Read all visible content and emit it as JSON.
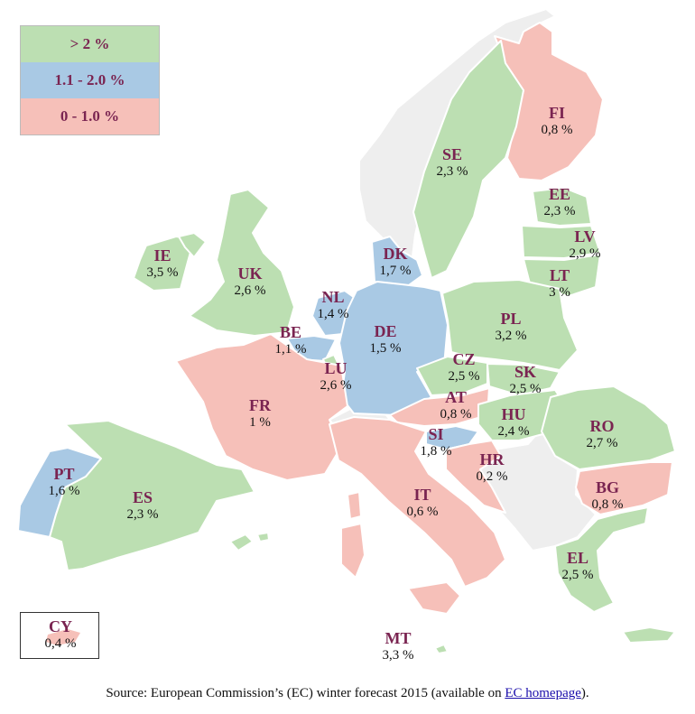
{
  "colors": {
    "high": "#bcdfb2",
    "mid": "#a9c9e4",
    "low": "#f6c0b9",
    "none": "#eeeeee",
    "border": "#ffffff",
    "label": "#7a2451"
  },
  "legend": [
    {
      "label": "> 2 %",
      "color": "#bcdfb2"
    },
    {
      "label": "1.1 - 2.0 %",
      "color": "#a9c9e4"
    },
    {
      "label": "0 - 1.0 %",
      "color": "#f6c0b9"
    }
  ],
  "countries": [
    {
      "code": "FI",
      "value": "0,8 %",
      "category": "low"
    },
    {
      "code": "SE",
      "value": "2,3 %",
      "category": "high"
    },
    {
      "code": "EE",
      "value": "2,3 %",
      "category": "high"
    },
    {
      "code": "LV",
      "value": "2,9 %",
      "category": "high"
    },
    {
      "code": "LT",
      "value": "3 %",
      "category": "high"
    },
    {
      "code": "IE",
      "value": "3,5 %",
      "category": "high"
    },
    {
      "code": "UK",
      "value": "2,6 %",
      "category": "high"
    },
    {
      "code": "DK",
      "value": "1,7 %",
      "category": "mid"
    },
    {
      "code": "NL",
      "value": "1,4 %",
      "category": "mid"
    },
    {
      "code": "PL",
      "value": "3,2 %",
      "category": "high"
    },
    {
      "code": "BE",
      "value": "1,1 %",
      "category": "mid"
    },
    {
      "code": "DE",
      "value": "1,5 %",
      "category": "mid"
    },
    {
      "code": "LU",
      "value": "2,6 %",
      "category": "high"
    },
    {
      "code": "CZ",
      "value": "2,5 %",
      "category": "high"
    },
    {
      "code": "SK",
      "value": "2,5 %",
      "category": "high"
    },
    {
      "code": "AT",
      "value": "0,8 %",
      "category": "low"
    },
    {
      "code": "FR",
      "value": "1 %",
      "category": "low"
    },
    {
      "code": "HU",
      "value": "2,4 %",
      "category": "high"
    },
    {
      "code": "RO",
      "value": "2,7 %",
      "category": "high"
    },
    {
      "code": "SI",
      "value": "1,8 %",
      "category": "mid"
    },
    {
      "code": "HR",
      "value": "0,2 %",
      "category": "low"
    },
    {
      "code": "PT",
      "value": "1,6 %",
      "category": "mid"
    },
    {
      "code": "ES",
      "value": "2,3 %",
      "category": "high"
    },
    {
      "code": "IT",
      "value": "0,6 %",
      "category": "low"
    },
    {
      "code": "BG",
      "value": "0,8 %",
      "category": "low"
    },
    {
      "code": "EL",
      "value": "2,5 %",
      "category": "high"
    },
    {
      "code": "MT",
      "value": "3,3 %",
      "category": "high"
    },
    {
      "code": "CY",
      "value": "0,4 %",
      "category": "low"
    }
  ],
  "source": {
    "prefix": "Source: European Commission’s (EC) winter forecast 2015 (available on ",
    "link_text": "EC homepage",
    "suffix": ")."
  }
}
